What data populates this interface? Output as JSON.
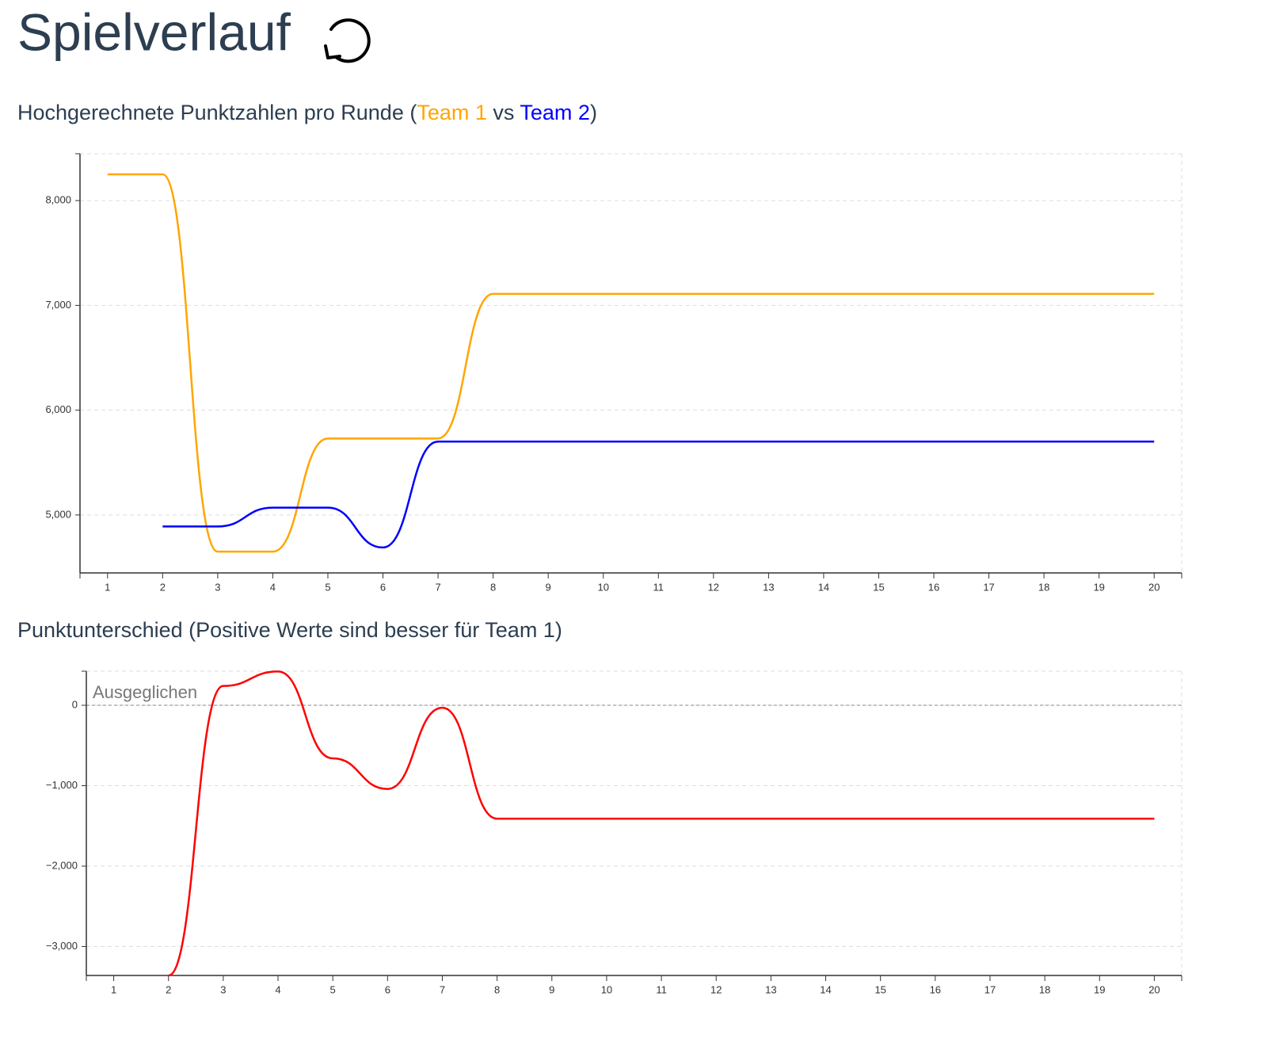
{
  "header": {
    "title": "Spielverlauf"
  },
  "chart_data": [
    {
      "type": "line",
      "title_prefix": "Hochgerechnete Punktzahlen pro Runde (",
      "title_joiner": " vs ",
      "title_suffix": ")",
      "x": [
        1,
        2,
        3,
        4,
        5,
        6,
        7,
        8,
        9,
        10,
        11,
        12,
        13,
        14,
        15,
        16,
        17,
        18,
        19,
        20
      ],
      "series": [
        {
          "name": "Team 1",
          "color": "#ffa500",
          "values": [
            8250,
            8250,
            4650,
            4650,
            5730,
            5730,
            5730,
            7110,
            7110,
            7110,
            7110,
            7110,
            7110,
            7110,
            7110,
            7110,
            7110,
            7110,
            7110,
            7110
          ]
        },
        {
          "name": "Team 2",
          "color": "#0000ff",
          "values": [
            null,
            4890,
            4890,
            5070,
            5070,
            4690,
            5700,
            5700,
            5700,
            5700,
            5700,
            5700,
            5700,
            5700,
            5700,
            5700,
            5700,
            5700,
            5700,
            5700
          ]
        }
      ],
      "xlim": [
        0.5,
        20.5
      ],
      "xticks": [
        1,
        2,
        3,
        4,
        5,
        6,
        7,
        8,
        9,
        10,
        11,
        12,
        13,
        14,
        15,
        16,
        17,
        18,
        19,
        20
      ],
      "ylim": [
        4447,
        8447
      ],
      "yticks": [
        {
          "value": 5000,
          "label": "5,000"
        },
        {
          "value": 6000,
          "label": "6,000"
        },
        {
          "value": 7000,
          "label": "7,000"
        },
        {
          "value": 8000,
          "label": "8,000"
        }
      ],
      "grid": true
    },
    {
      "type": "line",
      "title": "Punktunterschied (Positive Werte sind besser für Team 1)",
      "x": [
        1,
        2,
        3,
        4,
        5,
        6,
        7,
        8,
        9,
        10,
        11,
        12,
        13,
        14,
        15,
        16,
        17,
        18,
        19,
        20
      ],
      "series": [
        {
          "color": "#ff0000",
          "values": [
            null,
            -3360,
            240,
            420,
            -660,
            -1040,
            -30,
            -1410,
            -1410,
            -1410,
            -1410,
            -1410,
            -1410,
            -1410,
            -1410,
            -1410,
            -1410,
            -1410,
            -1410,
            -1410
          ]
        }
      ],
      "xlim": [
        0.5,
        20.5
      ],
      "xticks": [
        1,
        2,
        3,
        4,
        5,
        6,
        7,
        8,
        9,
        10,
        11,
        12,
        13,
        14,
        15,
        16,
        17,
        18,
        19,
        20
      ],
      "ylim": [
        -3360,
        424
      ],
      "yticks": [
        {
          "value": -3000,
          "label": "−3,000"
        },
        {
          "value": -2000,
          "label": "−2,000"
        },
        {
          "value": -1000,
          "label": "−1,000"
        },
        0
      ],
      "annotations": [
        {
          "text": "Ausgeglichen",
          "y": 0
        }
      ],
      "grid": true
    }
  ]
}
